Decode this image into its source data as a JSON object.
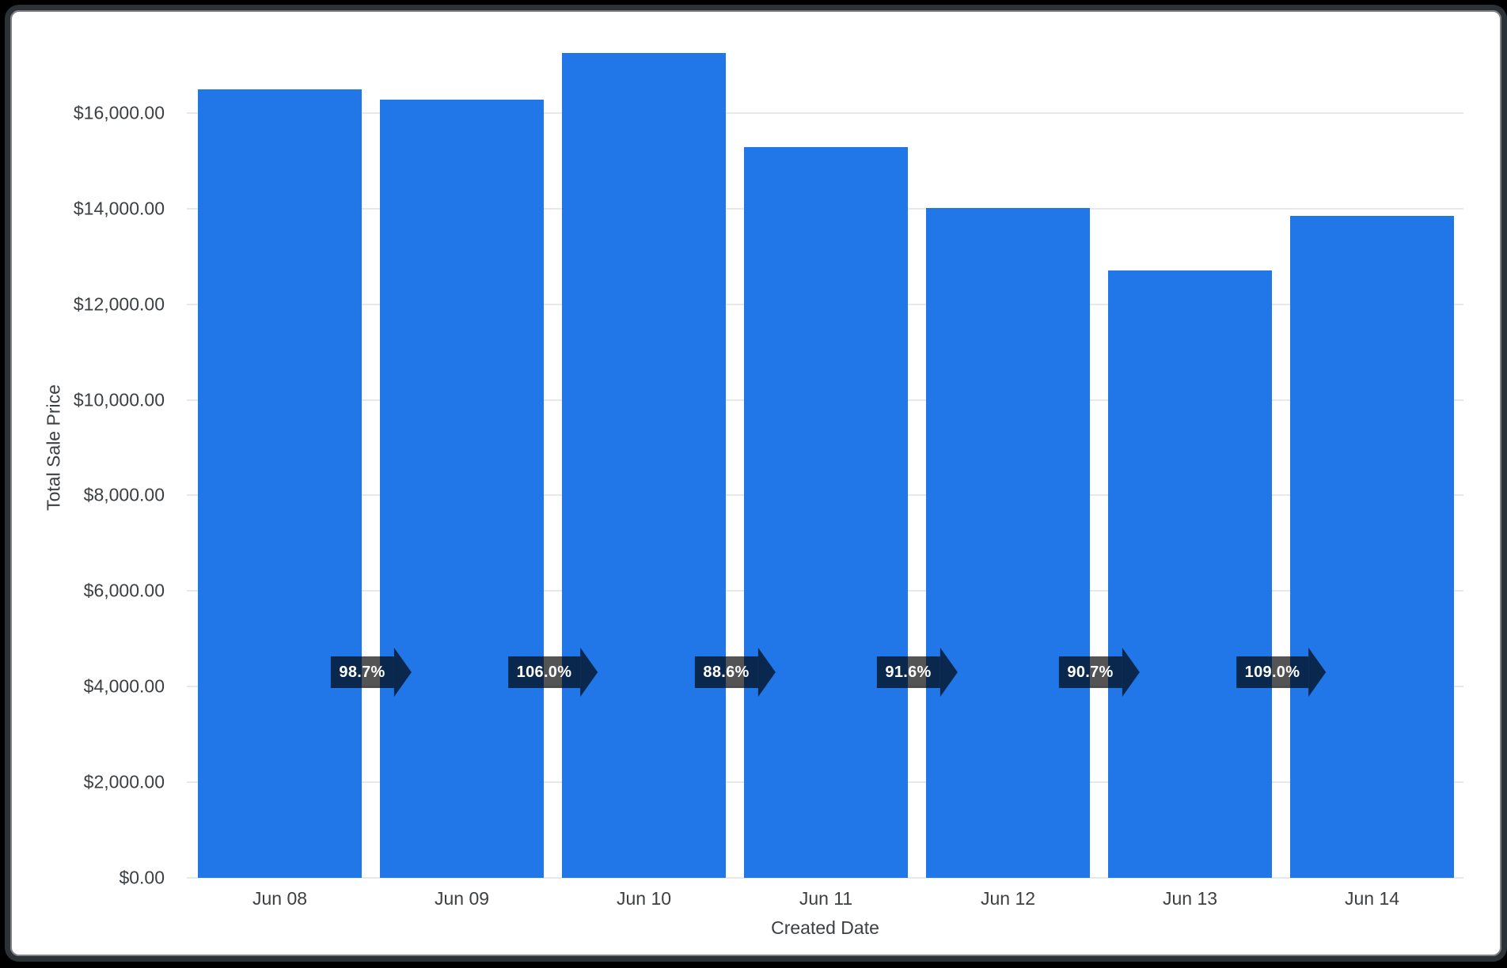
{
  "chart_data": {
    "type": "bar",
    "title": "",
    "xlabel": "Created Date",
    "ylabel": "Total Sale Price",
    "categories": [
      "Jun 08",
      "Jun 09",
      "Jun 10",
      "Jun 11",
      "Jun 12",
      "Jun 13",
      "Jun 14"
    ],
    "values": [
      16500,
      16286,
      17263,
      15295,
      14010,
      12707,
      13851
    ],
    "growth_labels": [
      "98.7%",
      "106.0%",
      "88.6%",
      "91.6%",
      "90.7%",
      "109.0%"
    ],
    "y_ticks": [
      {
        "value": 0,
        "label": "$0.00"
      },
      {
        "value": 2000,
        "label": "$2,000.00"
      },
      {
        "value": 4000,
        "label": "$4,000.00"
      },
      {
        "value": 6000,
        "label": "$6,000.00"
      },
      {
        "value": 8000,
        "label": "$8,000.00"
      },
      {
        "value": 10000,
        "label": "$10,000.00"
      },
      {
        "value": 12000,
        "label": "$12,000.00"
      },
      {
        "value": 14000,
        "label": "$14,000.00"
      },
      {
        "value": 16000,
        "label": "$16,000.00"
      }
    ],
    "ylim": [
      0,
      18000
    ],
    "grid": true,
    "legend": false,
    "colors": {
      "bar": "#2176e8",
      "grid": "#e7e8ea",
      "axis_text": "#3c4043",
      "badge_bg": "rgba(0,0,0,0.67)",
      "badge_text": "#ffffff",
      "frame_outer": "#000000",
      "frame_border": "#2d3237",
      "frame_ring": "#7d8389",
      "card_bg": "#ffffff"
    }
  }
}
